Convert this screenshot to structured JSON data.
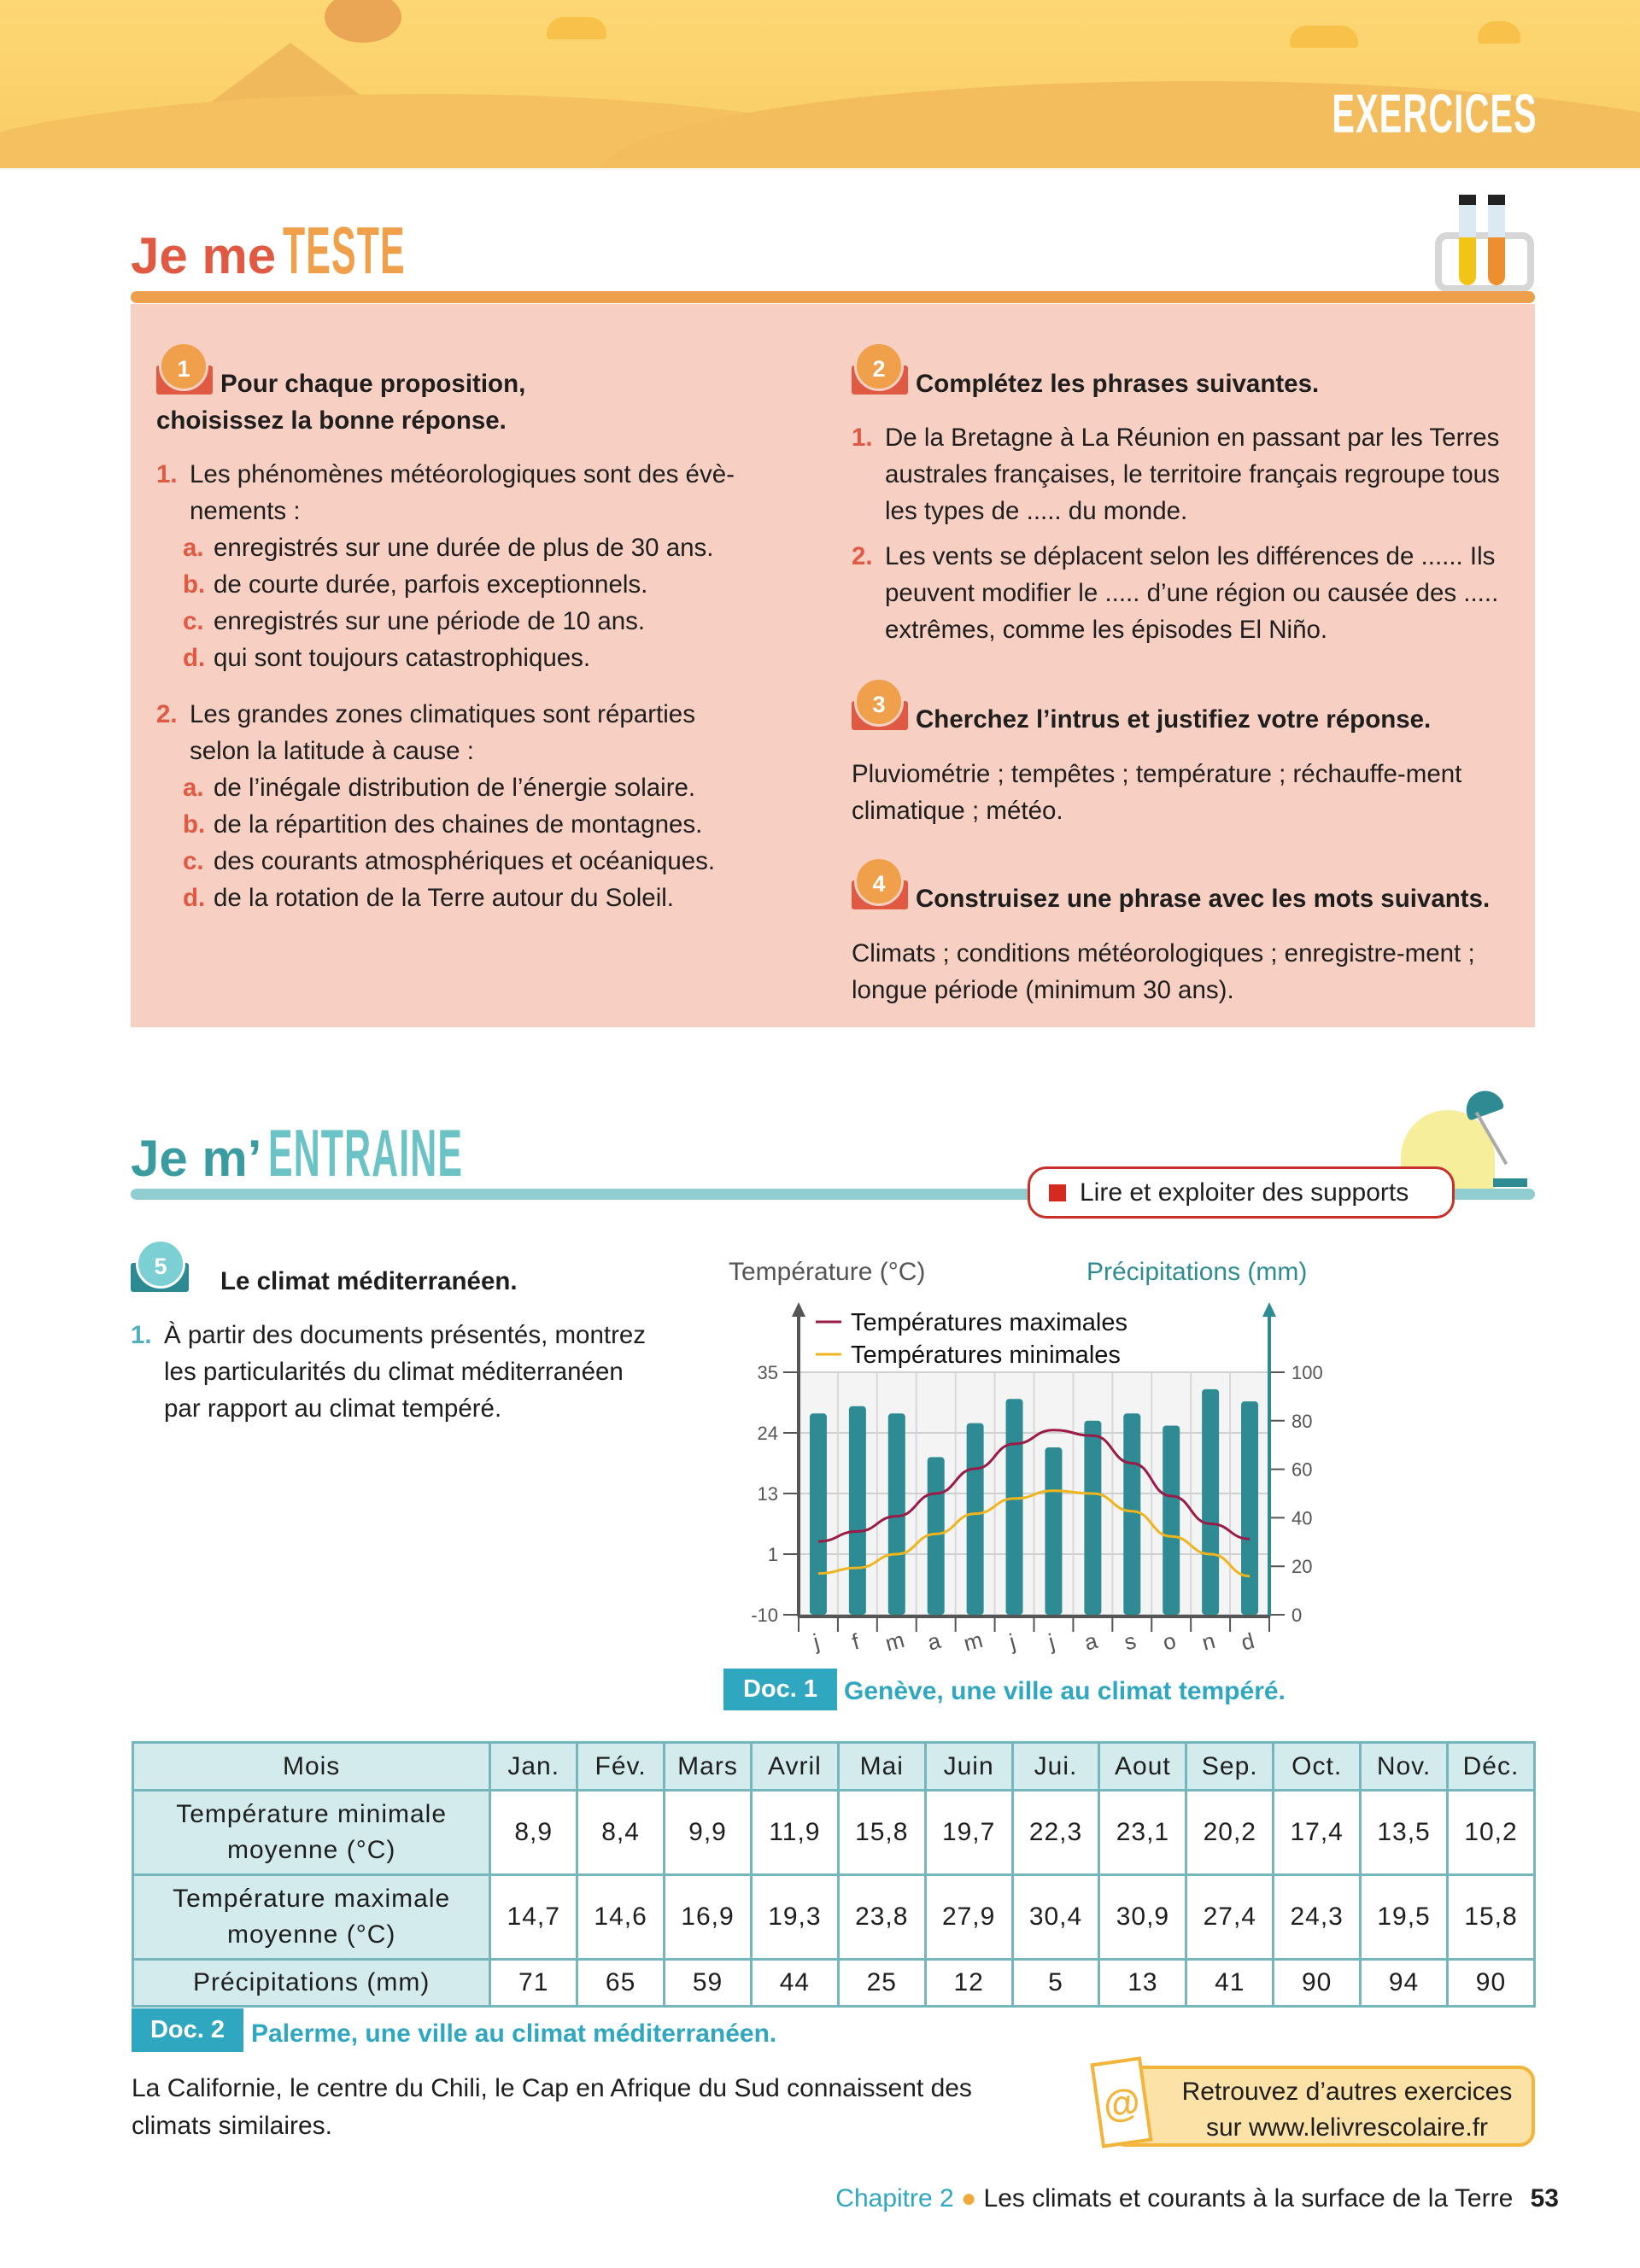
{
  "banner": {
    "label": "EXERCICES"
  },
  "teste": {
    "prefix": "Je me",
    "word": "TESTE",
    "ex1": {
      "num": "1",
      "title_line1": "Pour chaque proposition,",
      "title_line2": "choisissez la bonne réponse.",
      "questions": [
        {
          "num": "1.",
          "text": "Les phénomènes météorologiques sont des évè-nements :",
          "options": [
            {
              "l": "a.",
              "t": "enregistrés sur une durée de plus de 30 ans."
            },
            {
              "l": "b.",
              "t": "de courte durée, parfois exceptionnels."
            },
            {
              "l": "c.",
              "t": "enregistrés sur une période de 10 ans."
            },
            {
              "l": "d.",
              "t": "qui sont toujours catastrophiques."
            }
          ]
        },
        {
          "num": "2.",
          "text": "Les grandes zones climatiques sont réparties selon la latitude à cause :",
          "options": [
            {
              "l": "a.",
              "t": "de l’inégale distribution de l’énergie solaire."
            },
            {
              "l": "b.",
              "t": "de la répartition des chaines de montagnes."
            },
            {
              "l": "c.",
              "t": "des courants atmosphériques et océaniques."
            },
            {
              "l": "d.",
              "t": "de la rotation de la Terre autour du Soleil."
            }
          ]
        }
      ]
    },
    "ex2": {
      "num": "2",
      "title": "Complétez les phrases suivantes.",
      "questions": [
        {
          "num": "1.",
          "text": "De la Bretagne à La Réunion en passant par les Terres australes françaises, le territoire français regroupe tous les types de ..... du monde."
        },
        {
          "num": "2.",
          "text": "Les vents se déplacent selon les différences de ...... Ils peuvent modifier le ..... d’une région ou causée des ..... extrêmes, comme les épisodes El Niño."
        }
      ]
    },
    "ex3": {
      "num": "3",
      "title": "Cherchez l’intrus et justifiez votre réponse.",
      "text": "Pluviométrie ; tempêtes ; température ; réchauffe-ment climatique ; météo."
    },
    "ex4": {
      "num": "4",
      "title": "Construisez une phrase avec les mots suivants.",
      "text": "Climats ; conditions météorologiques ; enregistre-ment ; longue période (minimum 30 ans)."
    }
  },
  "entraine": {
    "prefix": "Je m’",
    "word": "ENTRAINE",
    "skill_badge": "Lire et exploiter des supports",
    "ex5": {
      "num": "5",
      "title": "Le climat méditerranéen.",
      "q_num": "1.",
      "q_text": "À partir des documents présentés, montrez les particularités du climat méditerranéen par rapport au climat tempéré."
    }
  },
  "chart_data": {
    "type": "bar+line",
    "title": "",
    "ylabel": "Température (°C)",
    "y2label": "Précipitations (mm)",
    "categories": [
      "j",
      "f",
      "m",
      "a",
      "m",
      "j",
      "j",
      "a",
      "s",
      "o",
      "n",
      "d"
    ],
    "yticks": [
      -10,
      1,
      13,
      24,
      35
    ],
    "y2ticks": [
      0,
      20,
      40,
      60,
      80,
      100
    ],
    "y2lim": [
      0,
      100
    ],
    "series": [
      {
        "name": "Précipitations",
        "type": "bar",
        "axis": "right",
        "color": "#2e8b93",
        "values": [
          83,
          86,
          83,
          65,
          79,
          89,
          69,
          80,
          83,
          78,
          93,
          88
        ]
      },
      {
        "name": "Températures maximales",
        "type": "line",
        "axis": "left",
        "color": "#9b1b47",
        "values": [
          3.5,
          5.5,
          8.5,
          13,
          17.5,
          22,
          24.5,
          23.5,
          18.5,
          12.5,
          7,
          4
        ]
      },
      {
        "name": "Températures minimales",
        "type": "line",
        "axis": "left",
        "color": "#f0b41c",
        "values": [
          -2.5,
          -1.5,
          1,
          5,
          9,
          12,
          13.5,
          13,
          9.5,
          4.5,
          1,
          -3
        ]
      }
    ],
    "legend": "top-left",
    "grid": true
  },
  "doc1": {
    "label": "Doc. 1",
    "caption": "Genève, une ville au climat tempéré."
  },
  "table": {
    "header": [
      "Mois",
      "Jan.",
      "Fév.",
      "Mars",
      "Avril",
      "Mai",
      "Juin",
      "Jui.",
      "Aout",
      "Sep.",
      "Oct.",
      "Nov.",
      "Déc."
    ],
    "rows": [
      {
        "label1": "Température minimale",
        "label2": "moyenne (°C)",
        "values": [
          "8,9",
          "8,4",
          "9,9",
          "11,9",
          "15,8",
          "19,7",
          "22,3",
          "23,1",
          "20,2",
          "17,4",
          "13,5",
          "10,2"
        ]
      },
      {
        "label1": "Température maximale",
        "label2": "moyenne (°C)",
        "values": [
          "14,7",
          "14,6",
          "16,9",
          "19,3",
          "23,8",
          "27,9",
          "30,4",
          "30,9",
          "27,4",
          "24,3",
          "19,5",
          "15,8"
        ]
      },
      {
        "label1": "Précipitations (mm)",
        "label2": "",
        "values": [
          "71",
          "65",
          "59",
          "44",
          "25",
          "12",
          "5",
          "13",
          "41",
          "90",
          "94",
          "90"
        ]
      }
    ]
  },
  "doc2": {
    "label": "Doc. 2",
    "caption": "Palerme, une ville au climat méditerranéen."
  },
  "note": "La Californie, le centre du Chili, le Cap en Afrique du Sud connaissent des climats similaires.",
  "web": {
    "line1": "Retrouvez d’autres exercices",
    "line2": "sur www.lelivrescolaire.fr",
    "icon": "@"
  },
  "footer": {
    "chapter": "Chapitre 2",
    "title": "Les climats et courants à la surface de la Terre",
    "page": "53"
  }
}
